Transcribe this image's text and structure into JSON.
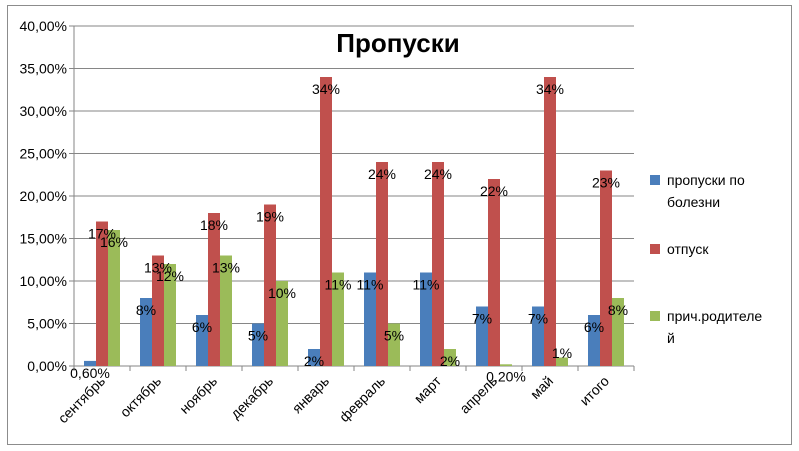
{
  "chart_data": {
    "type": "bar",
    "title": "Пропуски",
    "categories": [
      "сентябрь",
      "октябрь",
      "ноябрь",
      "декабрь",
      "январь",
      "февраль",
      "март",
      "апрель",
      "май",
      "итого"
    ],
    "y_ticks": [
      "0,00%",
      "5,00%",
      "10,00%",
      "15,00%",
      "20,00%",
      "25,00%",
      "30,00%",
      "35,00%",
      "40,00%"
    ],
    "ylim": [
      0,
      40
    ],
    "grid": true,
    "legend_position": "right",
    "series": [
      {
        "name": "пропуски по болезни",
        "name_lines": [
          "пропуски по",
          "болезни"
        ],
        "color": "#4a7ebb",
        "values": [
          0.6,
          8,
          6,
          5,
          2,
          11,
          11,
          7,
          7,
          6
        ],
        "labels": [
          "0,60%",
          "8%",
          "6%",
          "5%",
          "2%",
          "11%",
          "11%",
          "7%",
          "7%",
          "6%"
        ]
      },
      {
        "name": "отпуск",
        "name_lines": [
          "отпуск"
        ],
        "color": "#c0504d",
        "values": [
          17,
          13,
          18,
          19,
          34,
          24,
          24,
          22,
          34,
          23
        ],
        "labels": [
          "17%",
          "13%",
          "18%",
          "19%",
          "34%",
          "24%",
          "24%",
          "22%",
          "34%",
          "23%"
        ]
      },
      {
        "name": "прич.родителей",
        "name_lines": [
          "прич.родителе",
          "й"
        ],
        "color": "#9bbb59",
        "values": [
          16,
          12,
          13,
          10,
          11,
          5,
          2,
          0.2,
          1,
          8
        ],
        "labels": [
          "16%",
          "12%",
          "13%",
          "10%",
          "11%",
          "5%",
          "2%",
          "0,20%",
          "1%",
          "8%"
        ]
      }
    ]
  }
}
